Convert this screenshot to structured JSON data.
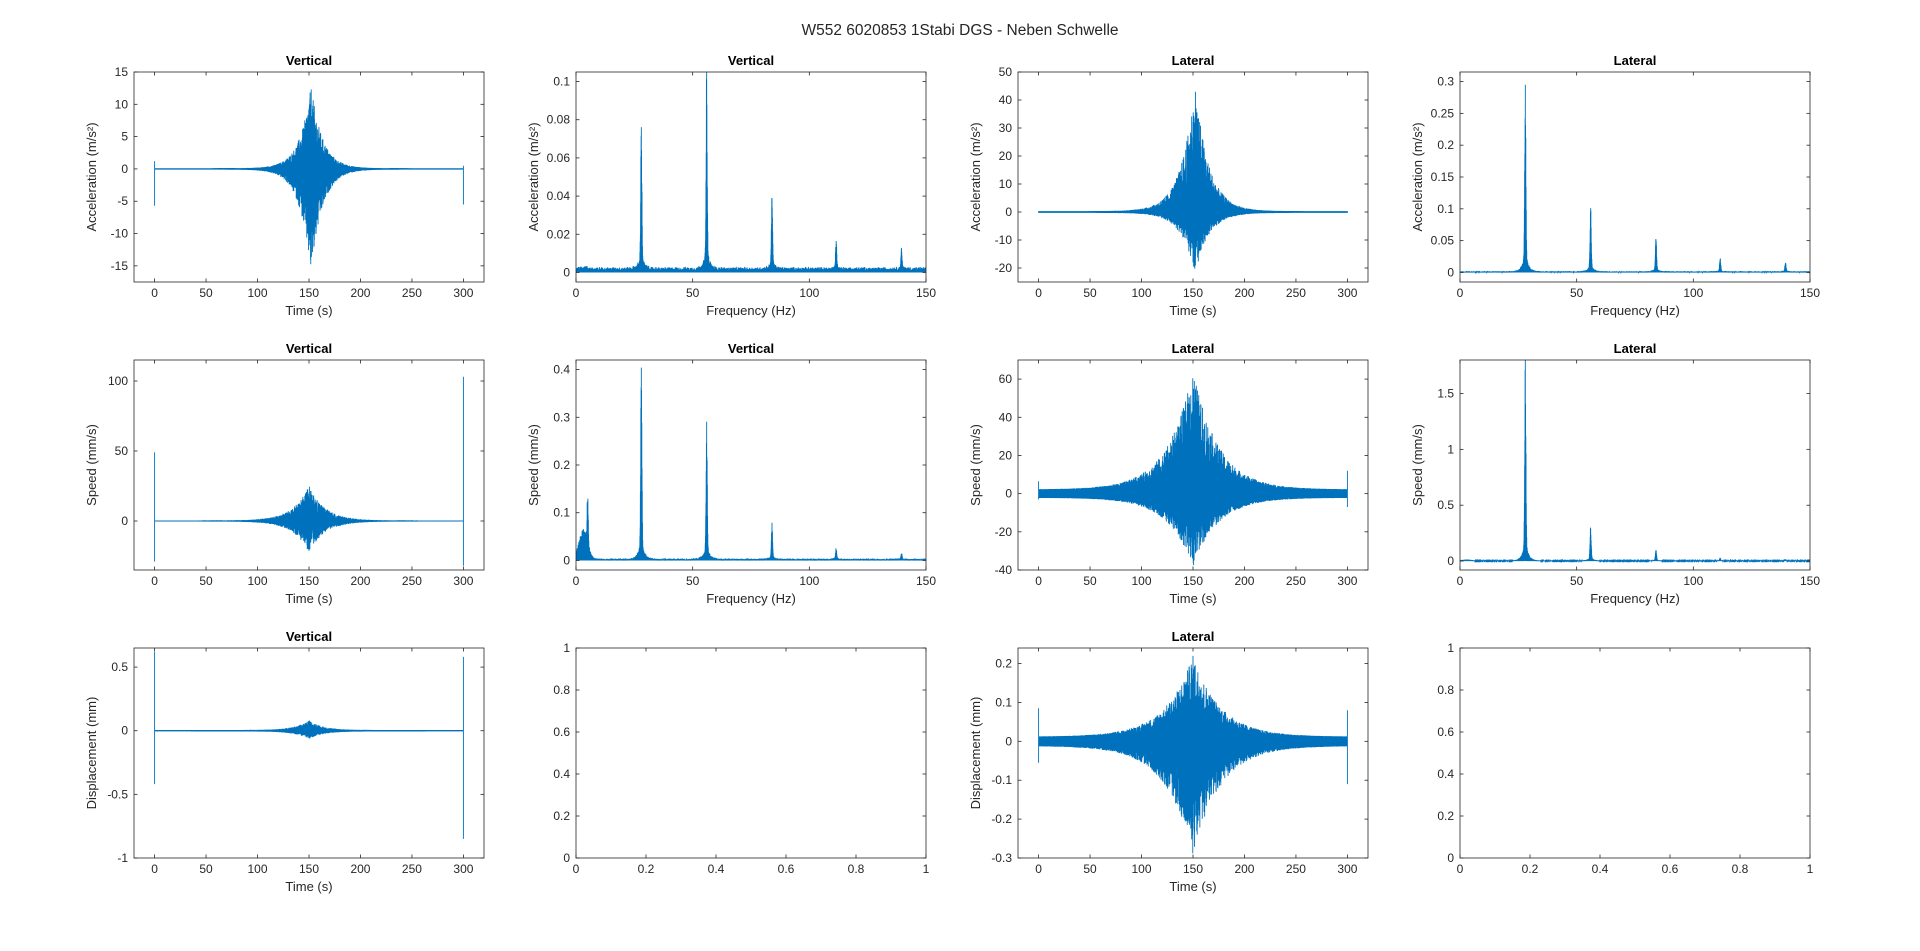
{
  "figure": {
    "title": "W552 6020853 1Stabi DGS - Neben Schwelle",
    "line_color": "#0072BD",
    "axis_color": "#262626"
  },
  "chart_data": [
    {
      "type": "line",
      "title": "Vertical",
      "xlabel": "Time (s)",
      "ylabel": "Acceleration (m/s²)",
      "xlim": [
        -20,
        320
      ],
      "ylim": [
        -17.5,
        15
      ],
      "xticks": [
        0,
        50,
        100,
        150,
        200,
        250,
        300
      ],
      "yticks": [
        -15,
        -10,
        -5,
        0,
        5,
        10,
        15
      ],
      "grid": false,
      "signal": {
        "kind": "time",
        "baseline": 0,
        "burst_center": 152,
        "burst_width": 10,
        "burst_pos": 12.8,
        "burst_neg": -16.5,
        "noise": 0.1,
        "spikes": [
          {
            "x": 0,
            "top": 1.2,
            "bottom": -5.7
          },
          {
            "x": 300,
            "top": 0.5,
            "bottom": -5.5
          }
        ]
      }
    },
    {
      "type": "line",
      "title": "Vertical",
      "xlabel": "Frequency (Hz)",
      "ylabel": "Acceleration (m/s²)",
      "xlim": [
        0,
        150
      ],
      "ylim": [
        -0.005,
        0.105
      ],
      "xticks": [
        0,
        50,
        100,
        150
      ],
      "yticks": [
        0,
        0.02,
        0.04,
        0.06,
        0.08,
        0.1
      ],
      "grid": false,
      "signal": {
        "kind": "spectrum",
        "floor": 0.002,
        "low_bump": 0.001,
        "peaks": [
          {
            "f": 28,
            "amp": 0.071
          },
          {
            "f": 56,
            "amp": 0.097
          },
          {
            "f": 84,
            "amp": 0.039
          },
          {
            "f": 111.5,
            "amp": 0.015
          },
          {
            "f": 139.5,
            "amp": 0.01
          }
        ]
      }
    },
    {
      "type": "line",
      "title": "Lateral",
      "xlabel": "Time (s)",
      "ylabel": "Acceleration (m/s²)",
      "xlim": [
        -20,
        320
      ],
      "ylim": [
        -25,
        50
      ],
      "xticks": [
        0,
        50,
        100,
        150,
        200,
        250,
        300
      ],
      "yticks": [
        -20,
        -10,
        0,
        10,
        20,
        30,
        40,
        50
      ],
      "grid": false,
      "signal": {
        "kind": "time",
        "baseline": 0,
        "burst_center": 152,
        "burst_width": 12,
        "burst_pos": 46,
        "burst_neg": -22,
        "noise": 0.3,
        "spikes": []
      }
    },
    {
      "type": "line",
      "title": "Lateral",
      "xlabel": "Frequency (Hz)",
      "ylabel": "Acceleration (m/s²)",
      "xlim": [
        0,
        150
      ],
      "ylim": [
        -0.015,
        0.315
      ],
      "xticks": [
        0,
        50,
        100,
        150
      ],
      "yticks": [
        0,
        0.05,
        0.1,
        0.15,
        0.2,
        0.25,
        0.3
      ],
      "grid": false,
      "signal": {
        "kind": "spectrum",
        "floor": 0.0015,
        "low_bump": 0,
        "peaks": [
          {
            "f": 28,
            "amp": 0.295
          },
          {
            "f": 56,
            "amp": 0.101
          },
          {
            "f": 84,
            "amp": 0.052
          },
          {
            "f": 111.5,
            "amp": 0.02
          },
          {
            "f": 139.5,
            "amp": 0.015
          }
        ]
      }
    },
    {
      "type": "line",
      "title": "Vertical",
      "xlabel": "Time (s)",
      "ylabel": "Speed (mm/s)",
      "xlim": [
        -20,
        320
      ],
      "ylim": [
        -35,
        115
      ],
      "xticks": [
        0,
        50,
        100,
        150,
        200,
        250,
        300
      ],
      "yticks": [
        0,
        50,
        100
      ],
      "grid": false,
      "signal": {
        "kind": "time",
        "baseline": 0,
        "burst_center": 150,
        "burst_width": 14,
        "burst_pos": 25,
        "burst_neg": -22,
        "noise": 0.3,
        "spikes": [
          {
            "x": 0,
            "top": 49,
            "bottom": -29
          },
          {
            "x": 300,
            "top": 103,
            "bottom": -32
          }
        ]
      }
    },
    {
      "type": "line",
      "title": "Vertical",
      "xlabel": "Frequency (Hz)",
      "ylabel": "Speed (mm/s)",
      "xlim": [
        0,
        150
      ],
      "ylim": [
        -0.02,
        0.42
      ],
      "xticks": [
        0,
        50,
        100,
        150
      ],
      "yticks": [
        0,
        0.1,
        0.2,
        0.3,
        0.4
      ],
      "grid": false,
      "signal": {
        "kind": "spectrum",
        "floor": 0.003,
        "low_bump": 0.06,
        "peaks": [
          {
            "f": 5,
            "amp": 0.105
          },
          {
            "f": 28,
            "amp": 0.4
          },
          {
            "f": 56,
            "amp": 0.275
          },
          {
            "f": 84,
            "amp": 0.072
          },
          {
            "f": 111.5,
            "amp": 0.022
          },
          {
            "f": 139.5,
            "amp": 0.012
          }
        ]
      }
    },
    {
      "type": "line",
      "title": "Lateral",
      "xlabel": "Time (s)",
      "ylabel": "Speed (mm/s)",
      "xlim": [
        -20,
        320
      ],
      "ylim": [
        -40,
        70
      ],
      "xticks": [
        0,
        50,
        100,
        150,
        200,
        250,
        300
      ],
      "yticks": [
        -40,
        -20,
        0,
        20,
        40,
        60
      ],
      "grid": false,
      "signal": {
        "kind": "time",
        "baseline": 0,
        "burst_center": 150,
        "burst_width": 22,
        "burst_pos": 63,
        "burst_neg": -36,
        "noise": 2.2,
        "spikes": [
          {
            "x": 0,
            "top": 6.5,
            "bottom": -3
          },
          {
            "x": 300,
            "top": 12,
            "bottom": -7
          }
        ]
      }
    },
    {
      "type": "line",
      "title": "Lateral",
      "xlabel": "Frequency (Hz)",
      "ylabel": "Speed (mm/s)",
      "xlim": [
        0,
        150
      ],
      "ylim": [
        -0.08,
        1.8
      ],
      "xticks": [
        0,
        50,
        100,
        150
      ],
      "yticks": [
        0,
        0.5,
        1,
        1.5
      ],
      "grid": false,
      "signal": {
        "kind": "spectrum",
        "floor": 0.004,
        "low_bump": 0.01,
        "peaks": [
          {
            "f": 28,
            "amp": 1.7
          },
          {
            "f": 56,
            "amp": 0.29
          },
          {
            "f": 84,
            "amp": 0.09
          },
          {
            "f": 111.5,
            "amp": 0.025
          },
          {
            "f": 139.5,
            "amp": 0.012
          }
        ]
      }
    },
    {
      "type": "line",
      "title": "Vertical",
      "xlabel": "Time (s)",
      "ylabel": "Displacement (mm)",
      "xlim": [
        -20,
        320
      ],
      "ylim": [
        -1,
        0.65
      ],
      "xticks": [
        0,
        50,
        100,
        150,
        200,
        250,
        300
      ],
      "yticks": [
        -1,
        -0.5,
        0,
        0.5
      ],
      "grid": false,
      "signal": {
        "kind": "time",
        "baseline": 0,
        "burst_center": 150,
        "burst_width": 12,
        "burst_pos": 0.08,
        "burst_neg": -0.06,
        "noise": 0.005,
        "spikes": [
          {
            "x": 0,
            "top": 0.62,
            "bottom": -0.42
          },
          {
            "x": 300,
            "top": 0.58,
            "bottom": -0.85
          }
        ]
      }
    },
    {
      "type": "empty",
      "title": "",
      "xlabel": "",
      "ylabel": "",
      "xlim": [
        0,
        1
      ],
      "ylim": [
        0,
        1
      ],
      "xticks": [
        0,
        0.2,
        0.4,
        0.6,
        0.8,
        1
      ],
      "yticks": [
        0,
        0.2,
        0.4,
        0.6,
        0.8,
        1
      ],
      "grid": false
    },
    {
      "type": "line",
      "title": "Lateral",
      "xlabel": "Time (s)",
      "ylabel": "Displacement (mm)",
      "xlim": [
        -20,
        320
      ],
      "ylim": [
        -0.3,
        0.24
      ],
      "xticks": [
        0,
        50,
        100,
        150,
        200,
        250,
        300
      ],
      "yticks": [
        -0.3,
        -0.2,
        -0.1,
        0,
        0.1,
        0.2
      ],
      "grid": false,
      "signal": {
        "kind": "time",
        "baseline": 0,
        "burst_center": 150,
        "burst_width": 24,
        "burst_pos": 0.21,
        "burst_neg": -0.28,
        "noise": 0.012,
        "spikes": [
          {
            "x": 0,
            "top": 0.085,
            "bottom": -0.055
          },
          {
            "x": 300,
            "top": 0.08,
            "bottom": -0.11
          }
        ]
      }
    },
    {
      "type": "empty",
      "title": "",
      "xlabel": "",
      "ylabel": "",
      "xlim": [
        0,
        1
      ],
      "ylim": [
        0,
        1
      ],
      "xticks": [
        0,
        0.2,
        0.4,
        0.6,
        0.8,
        1
      ],
      "yticks": [
        0,
        0.2,
        0.4,
        0.6,
        0.8,
        1
      ],
      "grid": false
    }
  ]
}
